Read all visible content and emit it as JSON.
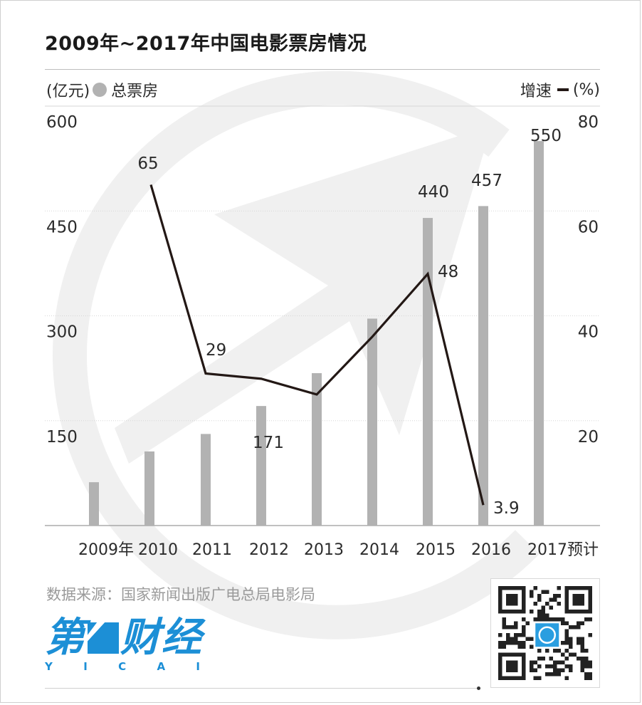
{
  "title": "2009年~2017年中国电影票房情况",
  "legend": {
    "left_unit": "(亿元)",
    "left_series": "总票房",
    "right_series": "增速",
    "right_unit": "(%)"
  },
  "source": "数据来源：国家新闻出版广电总局电影局",
  "logo": {
    "text_before": "第",
    "text_after": "财经",
    "letters": [
      "Y",
      "I",
      "C",
      "A",
      "I"
    ],
    "color": "#1c8fd6"
  },
  "icons": {
    "watermark": "yicai-circle-arrow-watermark",
    "qr": "qr-code-icon"
  },
  "colors": {
    "bar": "#b2b2b2",
    "line": "#231815",
    "watermark": "#f0f0f0",
    "text": "#2b2b2b"
  },
  "chart_data": {
    "type": "bar+line",
    "categories": [
      "2009年",
      "2010",
      "2011",
      "2012",
      "2013",
      "2014",
      "2015",
      "2016",
      "2017预计"
    ],
    "series": [
      {
        "name": "总票房",
        "type": "bar",
        "axis": "left",
        "values": [
          62,
          106,
          131,
          171,
          218,
          296,
          440,
          457,
          550
        ],
        "labels": [
          "",
          "",
          "",
          "171",
          "",
          "",
          "440",
          "457",
          "550"
        ]
      },
      {
        "name": "增速",
        "type": "line",
        "axis": "right",
        "values": [
          null,
          65,
          29,
          28,
          25,
          36,
          48,
          3.9,
          null
        ],
        "labels": [
          "",
          "65",
          "29",
          "",
          "",
          "",
          "48",
          "3.9",
          ""
        ]
      }
    ],
    "left_axis": {
      "ticks": [
        "600",
        "450",
        "300",
        "150"
      ],
      "range": [
        0,
        600
      ]
    },
    "right_axis": {
      "ticks": [
        "80",
        "60",
        "40",
        "20"
      ],
      "range": [
        0,
        80
      ]
    },
    "grid": true,
    "legend_position": "top"
  }
}
